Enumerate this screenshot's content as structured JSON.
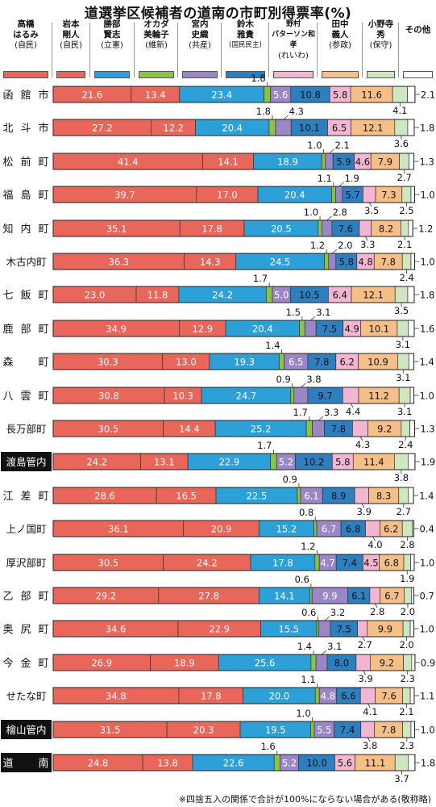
{
  "title": "道選挙区候補者の道南の市町別得票率(%)",
  "footnote": "※四捨五入の関係で合計が100%にならない場合がある(敬称略)",
  "colors": {
    "takahashi": "#e8665a",
    "iwamoto": "#e8665a",
    "katsube": "#2ea0d8",
    "okada": "#8cc24a",
    "miyauchi": "#9b87c7",
    "suzuki": "#2e7fc0",
    "nomura": "#f2b6d2",
    "tanaka": "#f5bf87",
    "onodera": "#cfe6c0",
    "other": "#ffffff"
  },
  "chart_data": {
    "type": "bar",
    "orientation": "horizontal",
    "stacked": true,
    "xlim": [
      0,
      100
    ],
    "series": [
      {
        "key": "takahashi",
        "name": "高橋 はるみ",
        "party": "(自民)"
      },
      {
        "key": "iwamoto",
        "name": "岩本 剛人",
        "party": "(自民)"
      },
      {
        "key": "katsube",
        "name": "勝部 賢志",
        "party": "(立憲)"
      },
      {
        "key": "okada",
        "name": "オカダ 美輪子",
        "party": "(維新)"
      },
      {
        "key": "miyauchi",
        "name": "宮内 史織",
        "party": "(共産)"
      },
      {
        "key": "suzuki",
        "name": "鈴木 雅貴",
        "party": "(国民民主)"
      },
      {
        "key": "nomura",
        "name": "野村 パターソン和孝",
        "party": "(れいわ)"
      },
      {
        "key": "tanaka",
        "name": "田中 義人",
        "party": "(参政)"
      },
      {
        "key": "onodera",
        "name": "小野寺 秀",
        "party": "(保守)"
      },
      {
        "key": "other",
        "name": "その他",
        "party": ""
      }
    ],
    "rows": [
      {
        "label": "函館市",
        "highlight": false,
        "values": [
          21.6,
          13.4,
          23.4,
          1.8,
          5.6,
          10.8,
          5.8,
          11.6,
          4.1,
          2.1
        ]
      },
      {
        "label": "北斗市",
        "highlight": false,
        "values": [
          27.2,
          12.2,
          20.4,
          1.8,
          4.3,
          10.1,
          6.5,
          12.1,
          3.6,
          1.8
        ]
      },
      {
        "label": "松前町",
        "highlight": false,
        "values": [
          41.4,
          14.1,
          18.9,
          1.0,
          2.1,
          5.9,
          4.6,
          7.9,
          2.7,
          1.3
        ]
      },
      {
        "label": "福島町",
        "highlight": false,
        "values": [
          39.7,
          17.0,
          20.4,
          1.1,
          1.9,
          5.7,
          3.5,
          7.3,
          2.5,
          1.0
        ]
      },
      {
        "label": "知内町",
        "highlight": false,
        "values": [
          35.1,
          17.8,
          20.5,
          1.0,
          2.8,
          7.6,
          3.3,
          8.2,
          2.1,
          1.2
        ]
      },
      {
        "label": "木古内町",
        "highlight": false,
        "values": [
          36.3,
          14.3,
          24.5,
          1.2,
          2.0,
          5.8,
          4.8,
          7.8,
          2.4,
          1.0
        ]
      },
      {
        "label": "七飯町",
        "highlight": false,
        "values": [
          23.0,
          11.8,
          24.2,
          1.7,
          5.0,
          10.5,
          6.4,
          12.1,
          3.5,
          1.8
        ]
      },
      {
        "label": "鹿部町",
        "highlight": false,
        "values": [
          34.9,
          12.9,
          20.4,
          1.5,
          3.1,
          7.5,
          4.9,
          10.1,
          3.1,
          1.6
        ]
      },
      {
        "label": "森町",
        "highlight": false,
        "values": [
          30.3,
          13.0,
          19.3,
          1.4,
          6.5,
          7.8,
          6.2,
          10.9,
          3.1,
          1.4
        ]
      },
      {
        "label": "八雲町",
        "highlight": false,
        "values": [
          30.8,
          10.3,
          24.7,
          0.9,
          3.8,
          9.7,
          4.4,
          11.2,
          3.1,
          1.0
        ]
      },
      {
        "label": "長万部町",
        "highlight": false,
        "values": [
          30.5,
          14.4,
          25.2,
          1.7,
          3.3,
          7.8,
          4.3,
          9.2,
          2.4,
          1.3
        ]
      },
      {
        "label": "渡島管内",
        "highlight": true,
        "values": [
          24.2,
          13.1,
          22.9,
          1.7,
          5.2,
          10.2,
          5.8,
          11.4,
          3.8,
          1.9
        ]
      },
      {
        "label": "江差町",
        "highlight": false,
        "values": [
          28.6,
          16.5,
          22.5,
          0.9,
          6.1,
          8.9,
          3.9,
          8.3,
          2.7,
          1.4
        ]
      },
      {
        "label": "上ノ国町",
        "highlight": false,
        "values": [
          36.1,
          20.9,
          15.2,
          0.8,
          6.7,
          6.8,
          4.0,
          6.2,
          2.8,
          0.4
        ]
      },
      {
        "label": "厚沢部町",
        "highlight": false,
        "values": [
          30.5,
          24.2,
          17.8,
          1.2,
          4.7,
          7.4,
          4.5,
          6.8,
          1.9,
          1.0
        ]
      },
      {
        "label": "乙部町",
        "highlight": false,
        "values": [
          29.2,
          27.8,
          14.1,
          0.6,
          9.9,
          6.1,
          2.8,
          6.7,
          2.0,
          0.7
        ]
      },
      {
        "label": "奥尻町",
        "highlight": false,
        "values": [
          34.6,
          22.9,
          15.5,
          0.6,
          3.2,
          7.5,
          2.7,
          9.9,
          2.0,
          1.0
        ]
      },
      {
        "label": "今金町",
        "highlight": false,
        "values": [
          26.9,
          18.9,
          25.6,
          1.4,
          3.1,
          8.0,
          3.9,
          9.2,
          2.3,
          0.9
        ]
      },
      {
        "label": "せたな町",
        "highlight": false,
        "values": [
          34.8,
          17.8,
          20.0,
          1.1,
          4.8,
          6.6,
          4.1,
          7.6,
          2.1,
          1.1
        ]
      },
      {
        "label": "檜山管内",
        "highlight": true,
        "values": [
          31.5,
          20.3,
          19.5,
          1.0,
          5.5,
          7.4,
          3.8,
          7.8,
          2.3,
          1.0
        ]
      },
      {
        "label": "道南",
        "highlight": true,
        "values": [
          24.8,
          13.8,
          22.6,
          1.6,
          5.2,
          10.0,
          5.6,
          11.1,
          3.7,
          1.8
        ]
      }
    ]
  }
}
